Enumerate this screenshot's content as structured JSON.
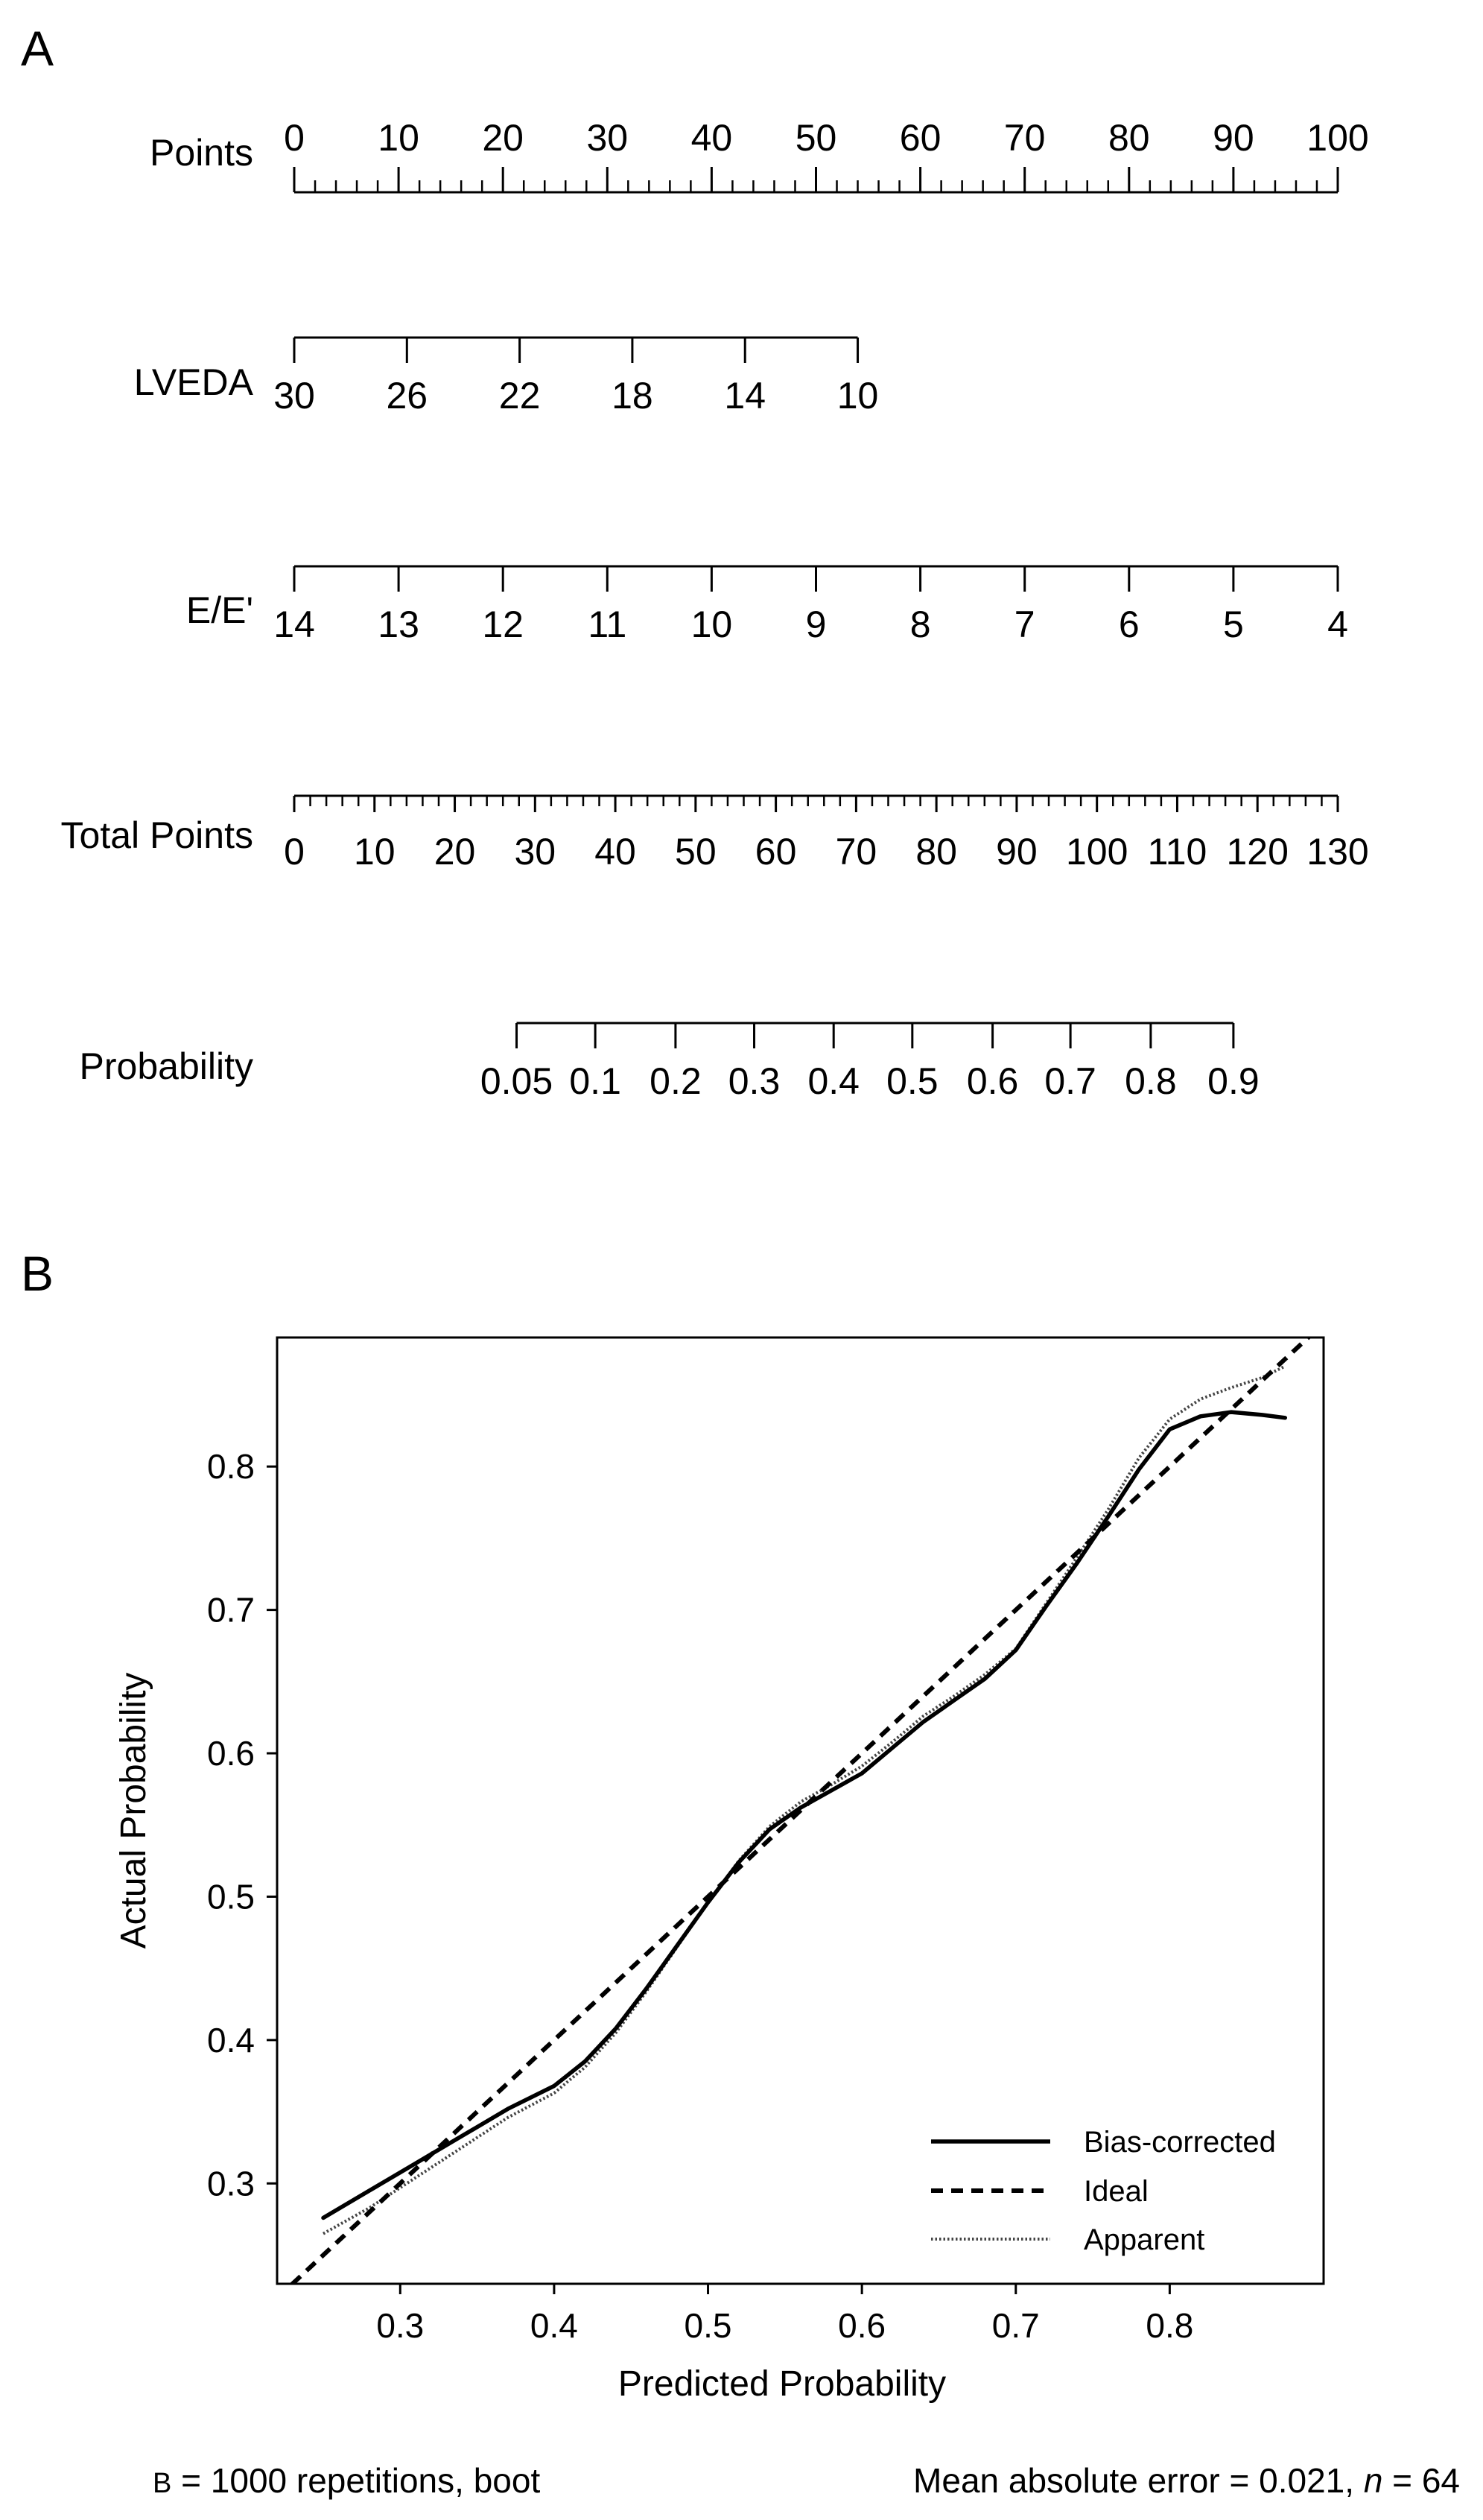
{
  "panel_a": {
    "letter": "A",
    "points_range": [
      0,
      100
    ],
    "total_points_range": [
      0,
      130
    ]
  },
  "panel_b": {
    "letter": "B"
  },
  "footer": {
    "left_b": "B",
    "left_rest": " = 1000 repetitions, boot",
    "right_main": "Mean absolute error = 0.021, ",
    "right_n": "n",
    "right_value": " = 64"
  },
  "chart_data": [
    {
      "type": "nomogram",
      "rows": [
        {
          "label": "Points",
          "labels": [
            "0",
            "10",
            "20",
            "30",
            "40",
            "50",
            "60",
            "70",
            "80",
            "90",
            "100"
          ],
          "positions": [
            0,
            10,
            20,
            30,
            40,
            50,
            60,
            70,
            80,
            90,
            100
          ],
          "minor_ticks": [
            0,
            2,
            4,
            6,
            8,
            10,
            12,
            14,
            16,
            18,
            20,
            22,
            24,
            26,
            28,
            30,
            32,
            34,
            36,
            38,
            40,
            42,
            44,
            46,
            48,
            50,
            52,
            54,
            56,
            58,
            60,
            62,
            64,
            66,
            68,
            70,
            72,
            74,
            76,
            78,
            80,
            82,
            84,
            86,
            88,
            90,
            92,
            94,
            96,
            98,
            100
          ],
          "scale": "points"
        },
        {
          "label": "LVEDA",
          "labels": [
            "30",
            "26",
            "22",
            "18",
            "14",
            "10"
          ],
          "positions": [
            0,
            10.8,
            21.6,
            32.4,
            43.2,
            54
          ],
          "minor_ticks": [],
          "scale": "points"
        },
        {
          "label": "E/E'",
          "labels": [
            "14",
            "13",
            "12",
            "11",
            "10",
            "9",
            "8",
            "7",
            "6",
            "5",
            "4"
          ],
          "positions": [
            0,
            10,
            20,
            30,
            40,
            50,
            60,
            70,
            80,
            90,
            100
          ],
          "minor_ticks": [],
          "scale": "points"
        },
        {
          "label": "Total Points",
          "labels": [
            "0",
            "10",
            "20",
            "30",
            "40",
            "50",
            "60",
            "70",
            "80",
            "90",
            "100",
            "110",
            "120",
            "130"
          ],
          "positions": [
            0,
            10,
            20,
            30,
            40,
            50,
            60,
            70,
            80,
            90,
            100,
            110,
            120,
            130
          ],
          "minor_ticks": [
            0,
            2,
            4,
            6,
            8,
            10,
            12,
            14,
            16,
            18,
            20,
            22,
            24,
            26,
            28,
            30,
            32,
            34,
            36,
            38,
            40,
            42,
            44,
            46,
            48,
            50,
            52,
            54,
            56,
            58,
            60,
            62,
            64,
            66,
            68,
            70,
            72,
            74,
            76,
            78,
            80,
            82,
            84,
            86,
            88,
            90,
            92,
            94,
            96,
            98,
            100,
            102,
            104,
            106,
            108,
            110,
            112,
            114,
            116,
            118,
            120,
            122,
            124,
            126,
            128,
            130
          ],
          "scale": "total"
        },
        {
          "label": "Probability",
          "labels": [
            "0.05",
            "0.1",
            "0.2",
            "0.3",
            "0.4",
            "0.5",
            "0.6",
            "0.7",
            "0.8",
            "0.9"
          ],
          "positions": [
            27.7,
            37.5,
            47.5,
            57.3,
            67.2,
            77,
            87,
            96.7,
            106.7,
            117
          ],
          "minor_ticks": [],
          "scale": "total"
        }
      ]
    },
    {
      "type": "line",
      "xlabel": "Predicted Probability",
      "ylabel": "Actual Probability",
      "xlim": [
        0.22,
        0.9
      ],
      "ylim": [
        0.23,
        0.89
      ],
      "xticks": [
        "0.3",
        "0.4",
        "0.5",
        "0.6",
        "0.7",
        "0.8"
      ],
      "yticks": [
        "0.3",
        "0.4",
        "0.5",
        "0.6",
        "0.7",
        "0.8"
      ],
      "series": [
        {
          "name": "Bias-corrected",
          "style": "solid",
          "x": [
            0.25,
            0.28,
            0.31,
            0.34,
            0.37,
            0.4,
            0.42,
            0.44,
            0.46,
            0.48,
            0.5,
            0.52,
            0.54,
            0.56,
            0.58,
            0.6,
            0.62,
            0.64,
            0.66,
            0.68,
            0.7,
            0.72,
            0.74,
            0.76,
            0.78,
            0.8,
            0.82,
            0.84,
            0.86,
            0.875
          ],
          "y": [
            0.276,
            0.295,
            0.314,
            0.333,
            0.352,
            0.368,
            0.385,
            0.408,
            0.436,
            0.466,
            0.496,
            0.524,
            0.547,
            0.562,
            0.574,
            0.586,
            0.604,
            0.622,
            0.637,
            0.652,
            0.672,
            0.703,
            0.733,
            0.765,
            0.798,
            0.826,
            0.835,
            0.838,
            0.836,
            0.834
          ]
        },
        {
          "name": "Ideal",
          "style": "dashed",
          "x": [
            0.22,
            0.9
          ],
          "y": [
            0.22,
            0.9
          ]
        },
        {
          "name": "Apparent",
          "style": "dotted",
          "x": [
            0.25,
            0.28,
            0.31,
            0.34,
            0.37,
            0.4,
            0.42,
            0.44,
            0.46,
            0.48,
            0.5,
            0.52,
            0.54,
            0.56,
            0.58,
            0.6,
            0.62,
            0.64,
            0.66,
            0.68,
            0.7,
            0.72,
            0.74,
            0.76,
            0.78,
            0.8,
            0.82,
            0.84,
            0.86,
            0.875
          ],
          "y": [
            0.265,
            0.283,
            0.304,
            0.325,
            0.346,
            0.363,
            0.381,
            0.405,
            0.434,
            0.465,
            0.496,
            0.525,
            0.549,
            0.566,
            0.578,
            0.591,
            0.608,
            0.626,
            0.64,
            0.655,
            0.673,
            0.705,
            0.737,
            0.77,
            0.806,
            0.833,
            0.847,
            0.855,
            0.862,
            0.87
          ]
        }
      ],
      "legend": {
        "position": "bottom-right",
        "entries": [
          {
            "label": "Bias-corrected",
            "style": "solid"
          },
          {
            "label": "Ideal",
            "style": "dashed"
          },
          {
            "label": "Apparent",
            "style": "dotted"
          }
        ]
      }
    }
  ]
}
